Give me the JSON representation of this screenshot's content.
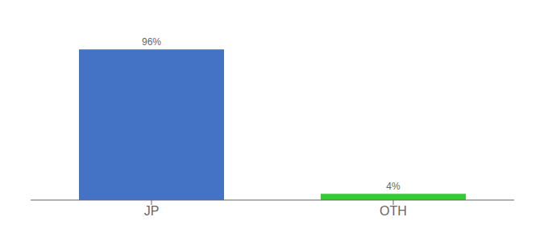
{
  "chart_data": {
    "type": "bar",
    "categories": [
      "JP",
      "OTH"
    ],
    "values": [
      96,
      4
    ],
    "colors": [
      "#4472c4",
      "#33cc33"
    ],
    "value_labels": [
      "96%",
      "4%"
    ],
    "data_labels": true,
    "ylim": [
      0,
      108
    ],
    "tick_labels": "x",
    "grid": false
  }
}
